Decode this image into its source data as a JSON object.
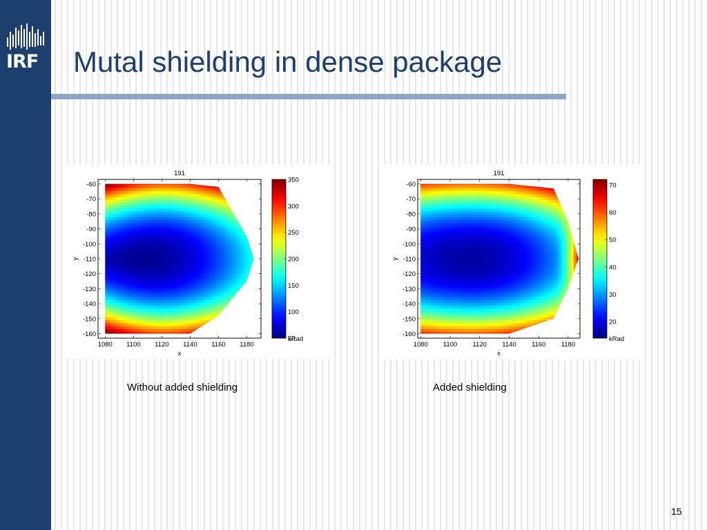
{
  "slide": {
    "logo_text": "IRF",
    "title": "Mutal shielding in dense package",
    "page_number": "15",
    "colors": {
      "sidebar": "#1c3f6e",
      "title": "#1c3f6e",
      "rule": "#8ea7c9"
    }
  },
  "captions": {
    "left": "Without added shielding",
    "right": "Added shielding"
  },
  "chart_data": [
    {
      "type": "heatmap",
      "title": "191",
      "xlabel": "x",
      "ylabel": "y",
      "xlim": [
        1075,
        1190
      ],
      "ylim": [
        -163,
        -57
      ],
      "x_ticks": [
        1080,
        1100,
        1120,
        1140,
        1160,
        1180
      ],
      "y_ticks": [
        -60,
        -70,
        -80,
        -90,
        -100,
        -110,
        -120,
        -130,
        -140,
        -150,
        -160
      ],
      "colorbar": {
        "label": "kRad",
        "min": 50,
        "max": 350,
        "ticks": [
          350,
          300,
          250,
          200,
          150,
          100,
          50
        ]
      },
      "hull": [
        [
          1080,
          -60
        ],
        [
          1140,
          -60
        ],
        [
          1160,
          -62
        ],
        [
          1180,
          -95
        ],
        [
          1185,
          -110
        ],
        [
          1180,
          -125
        ],
        [
          1160,
          -148
        ],
        [
          1140,
          -160
        ],
        [
          1080,
          -160
        ]
      ],
      "field": {
        "center_y": -110,
        "center_x": 1108,
        "min": 55,
        "max": 340
      }
    },
    {
      "type": "heatmap",
      "title": "191",
      "xlabel": "x",
      "ylabel": "y",
      "xlim": [
        1078,
        1188
      ],
      "ylim": [
        -163,
        -57
      ],
      "x_ticks": [
        1080,
        1100,
        1120,
        1140,
        1160,
        1180
      ],
      "y_ticks": [
        -60,
        -70,
        -80,
        -90,
        -100,
        -110,
        -120,
        -130,
        -140,
        -150,
        -160
      ],
      "colorbar": {
        "label": "kRad",
        "min": 14,
        "max": 72,
        "ticks": [
          70,
          60,
          50,
          40,
          30,
          20
        ]
      },
      "hull": [
        [
          1080,
          -60
        ],
        [
          1140,
          -60
        ],
        [
          1170,
          -63
        ],
        [
          1180,
          -85
        ],
        [
          1187,
          -110
        ],
        [
          1180,
          -130
        ],
        [
          1170,
          -150
        ],
        [
          1140,
          -160
        ],
        [
          1080,
          -160
        ]
      ],
      "field": {
        "center_y": -110,
        "center_x": 1115,
        "min": 16,
        "max": 70
      }
    }
  ]
}
